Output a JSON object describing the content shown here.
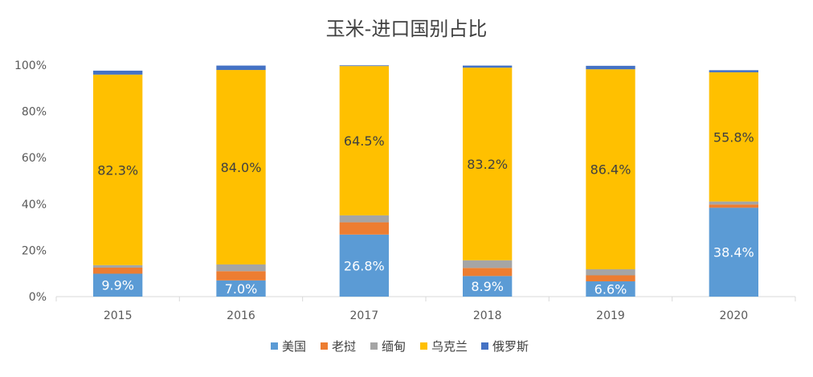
{
  "chart_data": {
    "type": "bar",
    "stacked": true,
    "title": "玉米-进口国别占比",
    "xlabel": "",
    "ylabel": "",
    "ylim": [
      0,
      100
    ],
    "y_ticks": [
      "0%",
      "20%",
      "40%",
      "60%",
      "80%",
      "100%"
    ],
    "grid": false,
    "legend_position": "bottom",
    "categories": [
      "2015",
      "2016",
      "2017",
      "2018",
      "2019",
      "2020"
    ],
    "series": [
      {
        "name": "美国",
        "color": "#5b9bd5",
        "values": [
          9.9,
          7.0,
          26.8,
          8.9,
          6.6,
          38.4
        ],
        "labels": [
          "9.9%",
          "7.0%",
          "26.8%",
          "8.9%",
          "6.6%",
          "38.4%"
        ]
      },
      {
        "name": "老挝",
        "color": "#ed7d31",
        "values": [
          2.6,
          4.0,
          5.3,
          3.5,
          2.6,
          1.4
        ],
        "labels": [
          "",
          "",
          "",
          "",
          "",
          ""
        ]
      },
      {
        "name": "缅甸",
        "color": "#a5a5a5",
        "values": [
          1.1,
          2.9,
          3.0,
          3.3,
          2.6,
          1.3
        ],
        "labels": [
          "",
          "",
          "",
          "",
          "",
          ""
        ]
      },
      {
        "name": "乌克兰",
        "color": "#ffc000",
        "values": [
          82.3,
          84.0,
          64.5,
          83.2,
          86.4,
          55.8
        ],
        "labels": [
          "82.3%",
          "84.0%",
          "64.5%",
          "83.2%",
          "86.4%",
          "55.8%"
        ]
      },
      {
        "name": "俄罗斯",
        "color": "#4472c4",
        "values": [
          1.7,
          1.9,
          0.3,
          0.9,
          1.5,
          0.9
        ],
        "labels": [
          "",
          "",
          "",
          "",
          "",
          ""
        ]
      }
    ]
  }
}
